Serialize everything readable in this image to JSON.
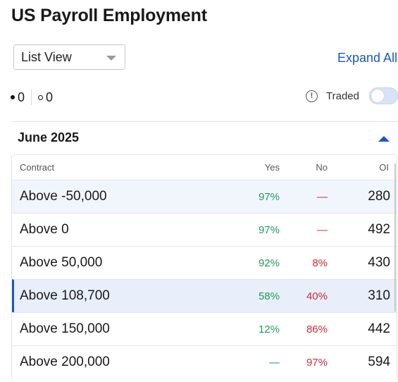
{
  "page": {
    "title": "US Payroll Employment"
  },
  "controls": {
    "view_select_value": "List View",
    "expand_all": "Expand All",
    "filled_count": "0",
    "empty_count": "0",
    "traded_label": "Traded",
    "traded_toggle_on": false
  },
  "group": {
    "month": "June 2025",
    "expanded": true
  },
  "table": {
    "headers": {
      "contract": "Contract",
      "yes": "Yes",
      "no": "No",
      "oi": "OI"
    },
    "rows": [
      {
        "contract": "Above -50,000",
        "yes": "97%",
        "no": "—",
        "oi": "280"
      },
      {
        "contract": "Above 0",
        "yes": "97%",
        "no": "—",
        "oi": "492"
      },
      {
        "contract": "Above 50,000",
        "yes": "92%",
        "no": "8%",
        "oi": "430"
      },
      {
        "contract": "Above 108,700",
        "yes": "58%",
        "no": "40%",
        "oi": "310"
      },
      {
        "contract": "Above 150,000",
        "yes": "12%",
        "no": "86%",
        "oi": "442"
      },
      {
        "contract": "Above 200,000",
        "yes": "—",
        "no": "97%",
        "oi": "594"
      }
    ]
  },
  "colors": {
    "accent": "#1b57c4",
    "yes": "#1f9d55",
    "no": "#cf2b3a",
    "row_highlight": "#f1f5fc",
    "row_selected": "#e8eefa"
  },
  "icons": {
    "select_caret": "chevron-down-icon",
    "info": "info-icon",
    "collapse": "caret-up-icon"
  }
}
